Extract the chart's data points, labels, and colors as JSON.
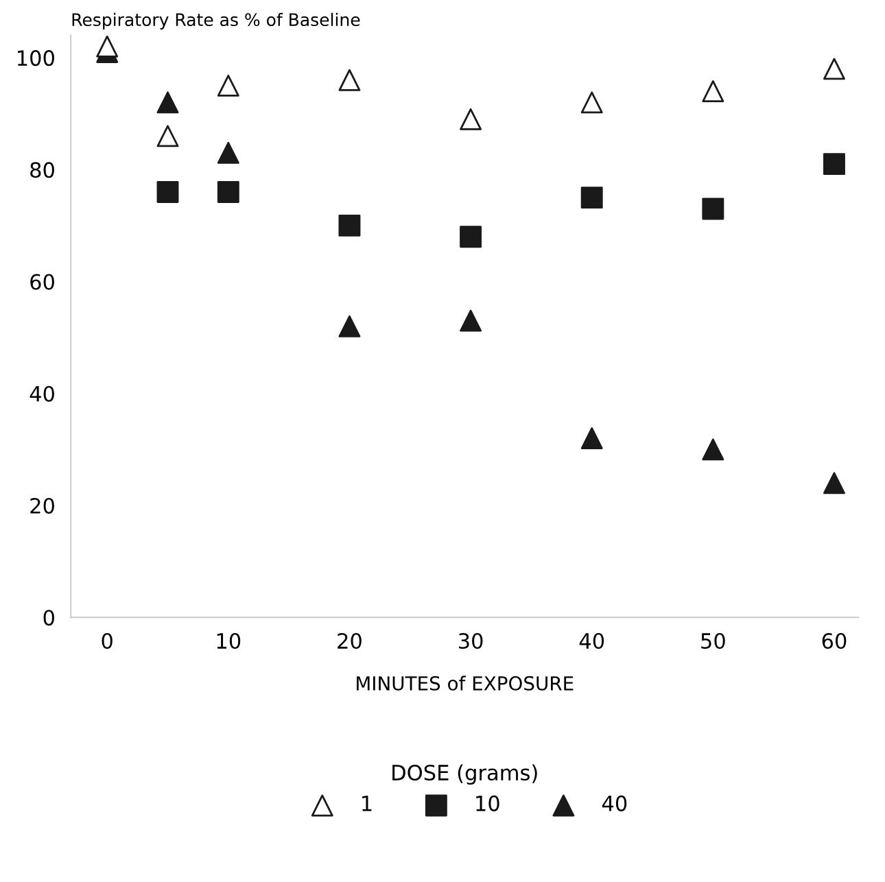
{
  "chart_data": {
    "type": "scatter",
    "title": "Respiratory Rate as % of Baseline",
    "xlabel": "MINUTES of EXPOSURE",
    "legend_title": "DOSE (grams)",
    "legend": "bottom",
    "grid": false,
    "x": [
      0,
      5,
      10,
      20,
      30,
      40,
      50,
      60
    ],
    "series": [
      {
        "name": "1",
        "color": "#ffffff",
        "marker": "triangle",
        "values": [
          102,
          86,
          95,
          96,
          89,
          92,
          94,
          98
        ]
      },
      {
        "name": "10",
        "color": "#1a1a1a",
        "marker": "square",
        "values": [
          null,
          76,
          76,
          70,
          68,
          75,
          73,
          81
        ]
      },
      {
        "name": "40",
        "color": "#1a1a1a",
        "marker": "triangle",
        "values": [
          101,
          92,
          83,
          52,
          53,
          32,
          30,
          24
        ]
      }
    ],
    "xlim": [
      -3,
      62
    ],
    "ylim": [
      0,
      104
    ],
    "xticks": [
      0,
      10,
      20,
      30,
      40,
      50,
      60
    ],
    "yticks": [
      0,
      20,
      40,
      60,
      80,
      100
    ]
  }
}
